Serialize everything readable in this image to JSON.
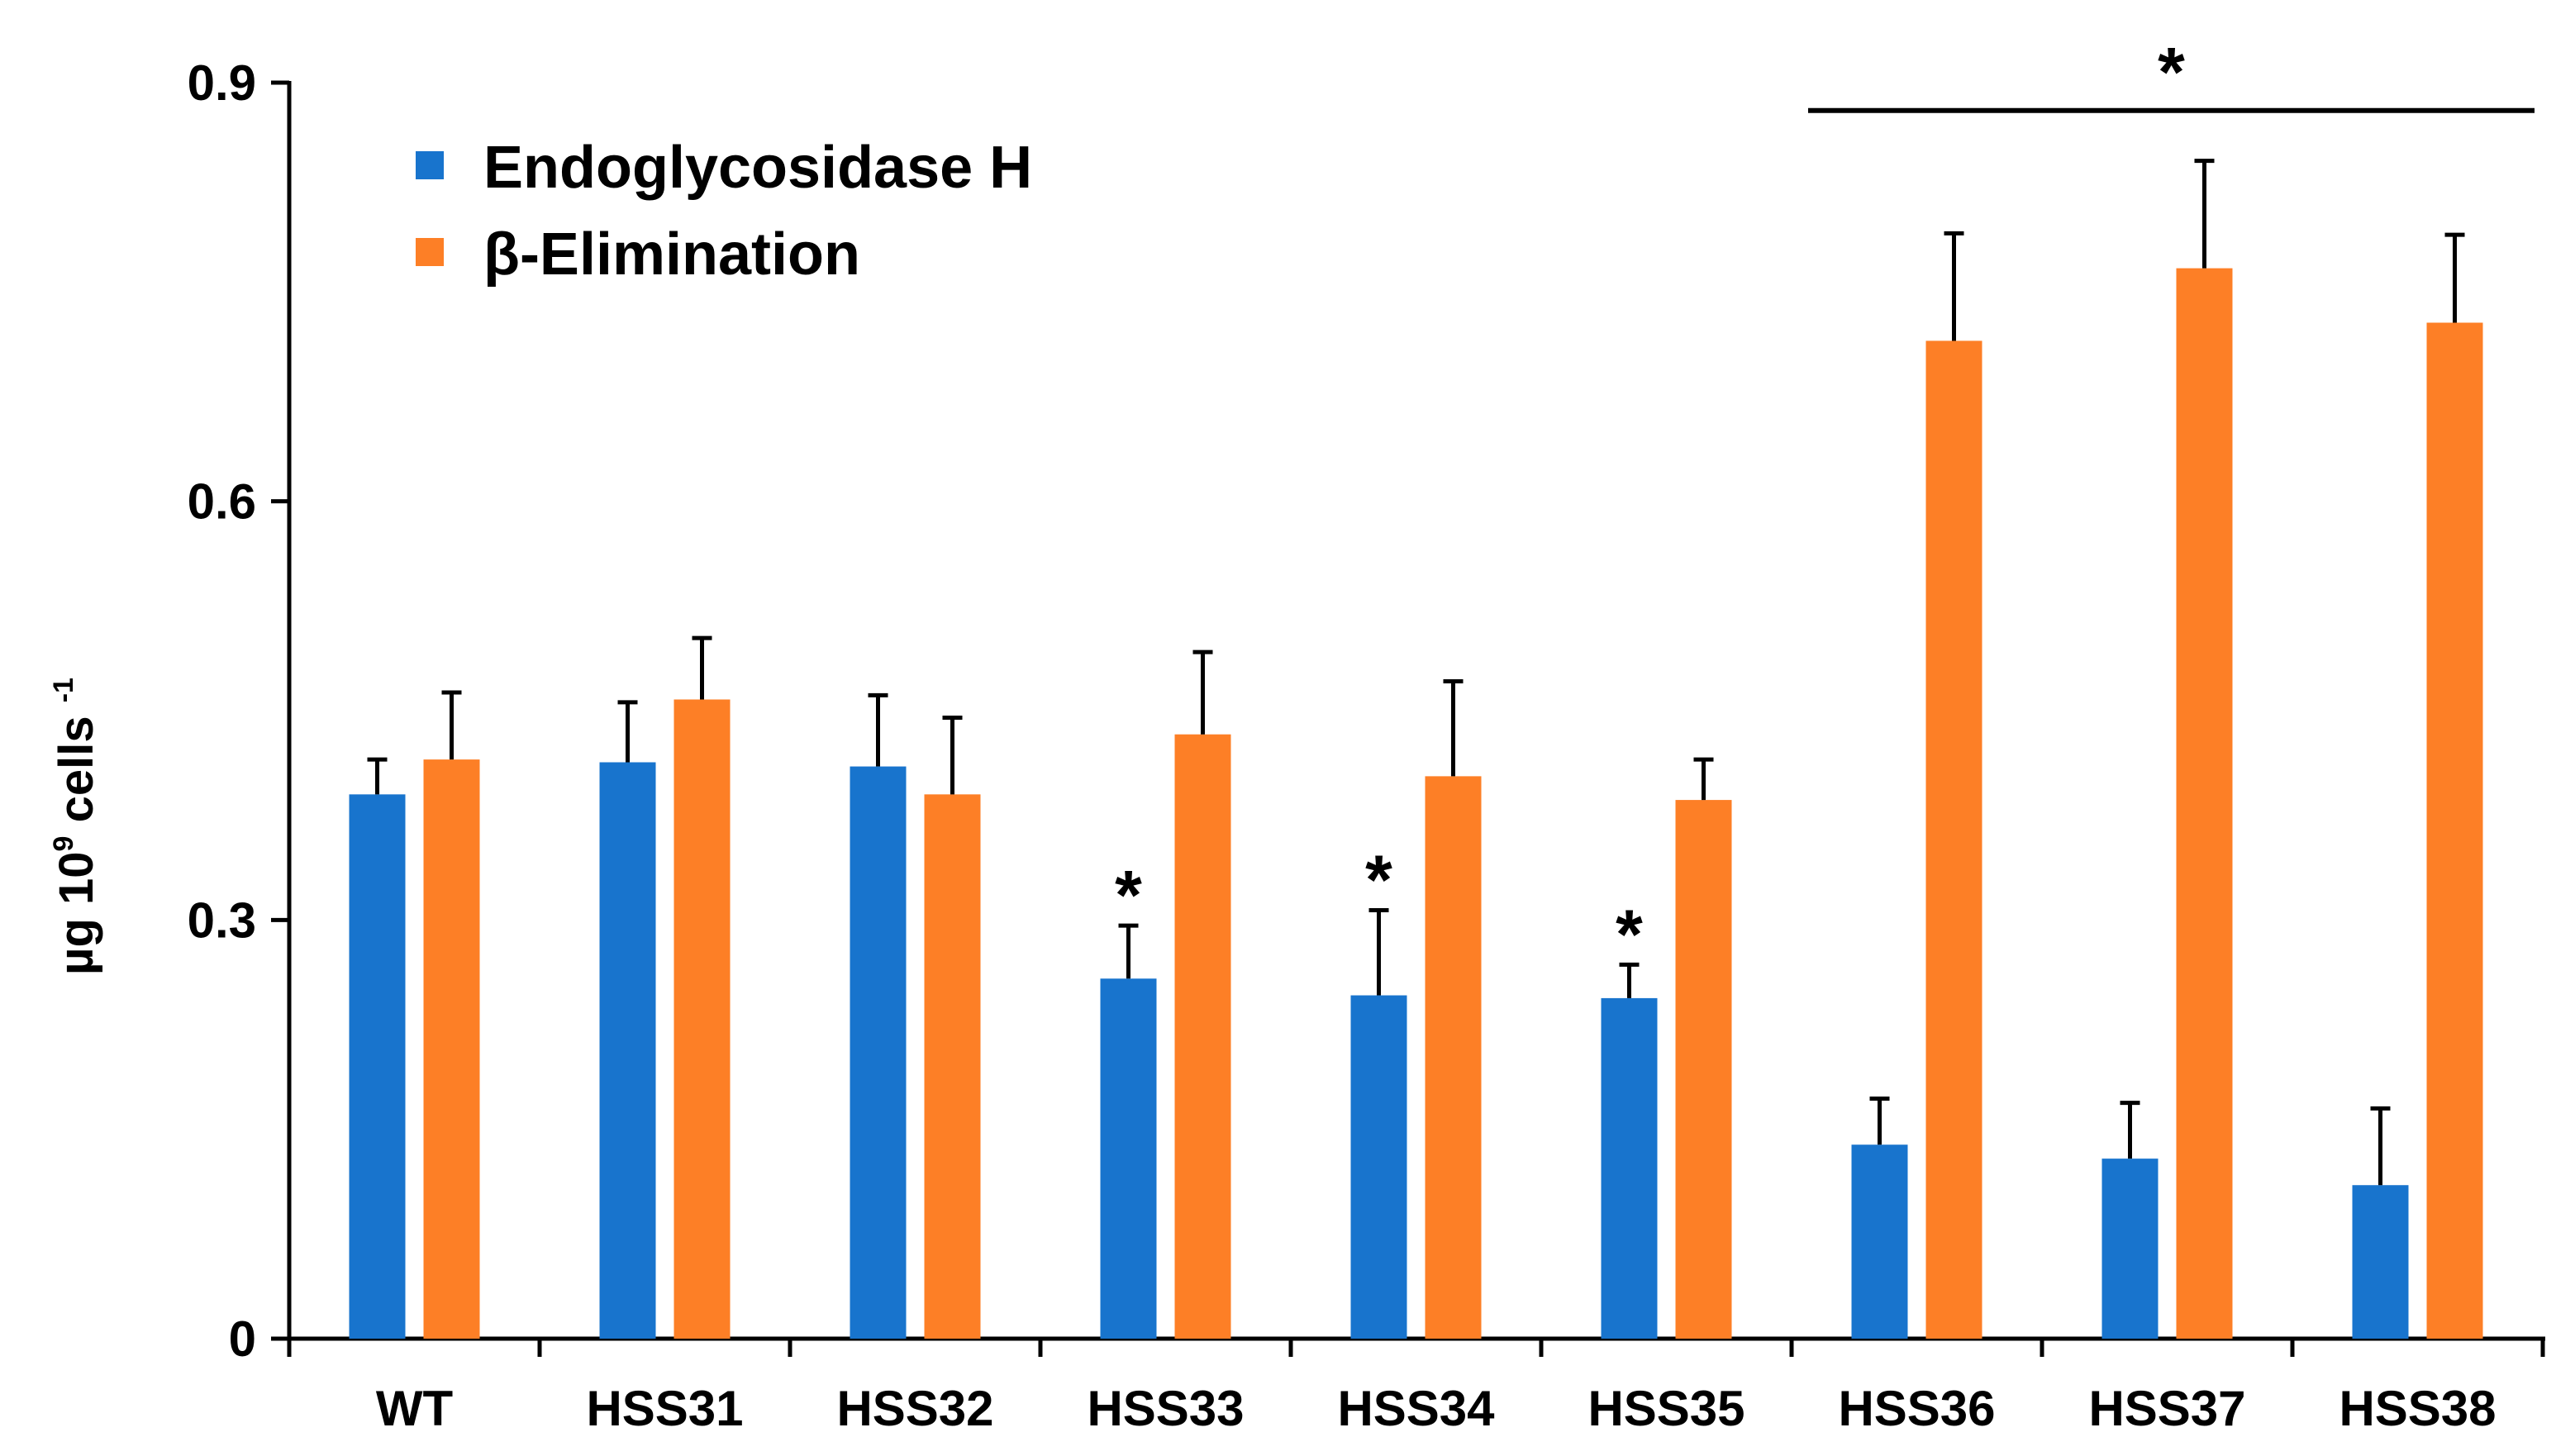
{
  "chart_data": {
    "type": "bar",
    "title": "",
    "xlabel": "",
    "ylabel": "µg 10",
    "ylabel_sup1": "9",
    "ylabel_mid": " cells ",
    "ylabel_sup2": "-1",
    "ylim": [
      0,
      0.9
    ],
    "yticks": [
      {
        "value": 0,
        "label": "0"
      },
      {
        "value": 0.3,
        "label": "0.3"
      },
      {
        "value": 0.6,
        "label": "0.6"
      },
      {
        "value": 0.9,
        "label": "0.9"
      }
    ],
    "categories": [
      "WT",
      "HSS31",
      "HSS32",
      "HSS33",
      "HSS34",
      "HSS35",
      "HSS36",
      "HSS37",
      "HSS38"
    ],
    "legend_position": "top-left",
    "series": [
      {
        "name": "Endoglycosidase H",
        "color": "#1874cd",
        "values": [
          0.39,
          0.413,
          0.41,
          0.258,
          0.246,
          0.244,
          0.139,
          0.129,
          0.11
        ],
        "errors": [
          0.025,
          0.043,
          0.051,
          0.038,
          0.061,
          0.024,
          0.033,
          0.04,
          0.055
        ]
      },
      {
        "name": "β-Elimination",
        "color": "#fd7f26",
        "values": [
          0.415,
          0.458,
          0.39,
          0.433,
          0.403,
          0.386,
          0.715,
          0.767,
          0.728
        ],
        "errors": [
          0.048,
          0.044,
          0.055,
          0.059,
          0.068,
          0.029,
          0.077,
          0.077,
          0.063
        ]
      }
    ],
    "annotations": [
      {
        "text": "*",
        "type": "bar",
        "category": "HSS33",
        "series": 0
      },
      {
        "text": "*",
        "type": "bar",
        "category": "HSS34",
        "series": 0
      },
      {
        "text": "*",
        "type": "bar",
        "category": "HSS35",
        "series": 0
      },
      {
        "text": "*",
        "type": "bracket",
        "from": "HSS36",
        "to": "HSS38",
        "value": 0.88
      }
    ]
  }
}
